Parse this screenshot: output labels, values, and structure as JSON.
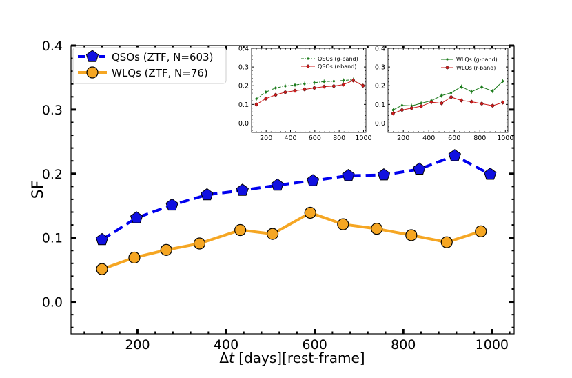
{
  "chart_data": [
    {
      "id": "main",
      "type": "line",
      "title": "",
      "xlabel_parts": [
        "Δ",
        "t",
        " [days][rest-frame]"
      ],
      "ylabel": "SF",
      "xlim": [
        50,
        1050
      ],
      "ylim": [
        -0.05,
        0.4
      ],
      "xticks": [
        200,
        400,
        600,
        800,
        1000
      ],
      "yticks": [
        0.0,
        0.1,
        0.2,
        0.3,
        0.4
      ],
      "ytick_labels": [
        "0.0",
        "0.1",
        "0.2",
        "0.3",
        "0.4"
      ],
      "legend_position": "top-left",
      "series": [
        {
          "name": "QSOs (ZTF, N=603)",
          "color": "#0000ee",
          "marker": "pentagon",
          "marker_color": "#1010e0",
          "linestyle": "dashed",
          "x": [
            120,
            198,
            278,
            357,
            437,
            516,
            596,
            676,
            756,
            836,
            916,
            996
          ],
          "y": [
            0.097,
            0.131,
            0.151,
            0.167,
            0.174,
            0.182,
            0.189,
            0.197,
            0.198,
            0.207,
            0.228,
            0.199
          ]
        },
        {
          "name": "WLQs (ZTF, N=76)",
          "color": "#f5a623",
          "marker": "circle",
          "marker_color": "#f5a623",
          "linestyle": "solid",
          "x": [
            120,
            193,
            265,
            340,
            432,
            505,
            590,
            664,
            740,
            818,
            898,
            975
          ],
          "y": [
            0.051,
            0.069,
            0.081,
            0.091,
            0.112,
            0.106,
            0.139,
            0.121,
            0.114,
            0.104,
            0.093,
            0.11
          ]
        }
      ]
    },
    {
      "id": "inset-qso",
      "type": "line",
      "title": "",
      "xlim": [
        80,
        1020
      ],
      "ylim": [
        -0.05,
        0.4
      ],
      "xticks": [
        200,
        400,
        600,
        800,
        1000
      ],
      "yticks": [
        0.0,
        0.1,
        0.2,
        0.3,
        0.4
      ],
      "ytick_labels": [
        "0.0",
        "0.1",
        "0.2",
        "0.3",
        "0.4"
      ],
      "legend_position": "top-right",
      "series": [
        {
          "name": "QSOs (g-band)",
          "color": "#1a7a1a",
          "marker": "point",
          "linestyle": "dashdot",
          "x": [
            120,
            198,
            278,
            357,
            437,
            516,
            596,
            676,
            756,
            836,
            916,
            996
          ],
          "y": [
            0.13,
            0.166,
            0.188,
            0.198,
            0.204,
            0.21,
            0.216,
            0.222,
            0.224,
            0.228,
            0.232,
            0.2
          ]
        },
        {
          "name": "QSOs (r-band)",
          "color": "#cc1a1a",
          "marker": "circle",
          "linestyle": "solid",
          "x": [
            120,
            198,
            278,
            357,
            437,
            516,
            596,
            676,
            756,
            836,
            916,
            996
          ],
          "y": [
            0.1,
            0.131,
            0.151,
            0.165,
            0.173,
            0.18,
            0.188,
            0.195,
            0.198,
            0.206,
            0.228,
            0.2
          ]
        }
      ]
    },
    {
      "id": "inset-wlq",
      "type": "line",
      "title": "",
      "xlim": [
        80,
        1020
      ],
      "ylim": [
        -0.05,
        0.4
      ],
      "xticks": [
        200,
        400,
        600,
        800,
        1000
      ],
      "yticks": [
        0.0,
        0.1,
        0.2,
        0.3,
        0.4
      ],
      "ytick_labels": [
        "0.0",
        "0.1",
        "0.2",
        "0.3",
        "0.4"
      ],
      "legend_position": "top-right",
      "series": [
        {
          "name": "WLQs (g-band)",
          "color": "#1a7a1a",
          "marker": "point",
          "linestyle": "solid",
          "x": [
            120,
            190,
            265,
            340,
            420,
            500,
            575,
            655,
            735,
            815,
            900,
            980
          ],
          "y": [
            0.07,
            0.095,
            0.092,
            0.106,
            0.12,
            0.147,
            0.162,
            0.195,
            0.168,
            0.193,
            0.171,
            0.224
          ]
        },
        {
          "name": "WLQs (r-band)",
          "color": "#cc1a1a",
          "marker": "circle",
          "linestyle": "solid",
          "x": [
            120,
            190,
            265,
            340,
            420,
            500,
            575,
            655,
            735,
            815,
            900,
            980
          ],
          "y": [
            0.052,
            0.07,
            0.08,
            0.09,
            0.112,
            0.106,
            0.139,
            0.121,
            0.114,
            0.104,
            0.093,
            0.11
          ]
        }
      ]
    }
  ]
}
